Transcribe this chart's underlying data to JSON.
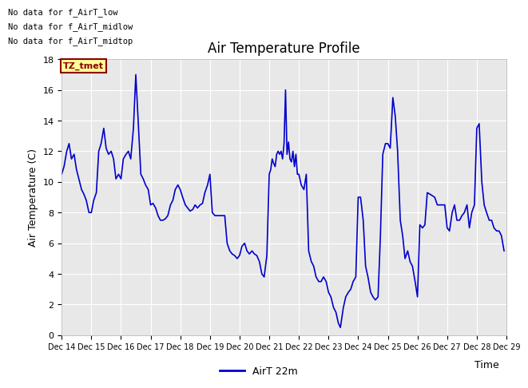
{
  "title": "Air Temperature Profile",
  "xlabel": "Time",
  "ylabel": "Air Temperature (C)",
  "ylim": [
    0,
    18
  ],
  "yticks": [
    0,
    2,
    4,
    6,
    8,
    10,
    12,
    14,
    16,
    18
  ],
  "line_color": "#0000cc",
  "line_width": 1.2,
  "background_color": "#ffffff",
  "plot_bg_color": "#e8e8e8",
  "grid_color": "#ffffff",
  "annotations": [
    "No data for f_AirT_low",
    "No data for f_AirT_midlow",
    "No data for f_AirT_midtop"
  ],
  "tz_label": "TZ_tmet",
  "legend_label": "AirT 22m",
  "xtick_labels": [
    "Dec 14",
    "Dec 15",
    "Dec 16",
    "Dec 17",
    "Dec 18",
    "Dec 19",
    "Dec 20",
    "Dec 21",
    "Dec 22",
    "Dec 23",
    "Dec 24",
    "Dec 25",
    "Dec 26",
    "Dec 27",
    "Dec 28",
    "Dec 29"
  ],
  "time_values": [
    14,
    15,
    16,
    17,
    18,
    19,
    20,
    21,
    22,
    23,
    24,
    25,
    26,
    27,
    28,
    29
  ],
  "temperature_data": [
    [
      14.0,
      10.5
    ],
    [
      14.08,
      11.0
    ],
    [
      14.17,
      12.0
    ],
    [
      14.25,
      12.5
    ],
    [
      14.33,
      11.5
    ],
    [
      14.42,
      11.8
    ],
    [
      14.5,
      10.8
    ],
    [
      14.58,
      10.2
    ],
    [
      14.67,
      9.5
    ],
    [
      14.75,
      9.2
    ],
    [
      14.83,
      8.8
    ],
    [
      14.92,
      8.0
    ],
    [
      15.0,
      8.0
    ],
    [
      15.08,
      8.8
    ],
    [
      15.17,
      9.3
    ],
    [
      15.25,
      12.0
    ],
    [
      15.33,
      12.5
    ],
    [
      15.42,
      13.5
    ],
    [
      15.5,
      12.2
    ],
    [
      15.58,
      11.8
    ],
    [
      15.67,
      12.0
    ],
    [
      15.75,
      11.5
    ],
    [
      15.83,
      10.2
    ],
    [
      15.92,
      10.5
    ],
    [
      16.0,
      10.2
    ],
    [
      16.08,
      11.5
    ],
    [
      16.17,
      11.8
    ],
    [
      16.25,
      12.0
    ],
    [
      16.33,
      11.5
    ],
    [
      16.42,
      13.5
    ],
    [
      16.5,
      17.0
    ],
    [
      16.58,
      14.0
    ],
    [
      16.67,
      10.5
    ],
    [
      16.75,
      10.2
    ],
    [
      16.83,
      9.8
    ],
    [
      16.92,
      9.5
    ],
    [
      17.0,
      8.5
    ],
    [
      17.08,
      8.6
    ],
    [
      17.17,
      8.3
    ],
    [
      17.25,
      7.8
    ],
    [
      17.33,
      7.5
    ],
    [
      17.42,
      7.5
    ],
    [
      17.5,
      7.6
    ],
    [
      17.58,
      7.8
    ],
    [
      17.67,
      8.5
    ],
    [
      17.75,
      8.8
    ],
    [
      17.83,
      9.5
    ],
    [
      17.92,
      9.8
    ],
    [
      18.0,
      9.5
    ],
    [
      18.08,
      9.0
    ],
    [
      18.17,
      8.5
    ],
    [
      18.25,
      8.3
    ],
    [
      18.33,
      8.1
    ],
    [
      18.42,
      8.2
    ],
    [
      18.5,
      8.5
    ],
    [
      18.58,
      8.3
    ],
    [
      18.67,
      8.5
    ],
    [
      18.75,
      8.6
    ],
    [
      18.83,
      9.3
    ],
    [
      18.92,
      9.8
    ],
    [
      19.0,
      10.5
    ],
    [
      19.08,
      8.0
    ],
    [
      19.17,
      7.8
    ],
    [
      19.25,
      7.8
    ],
    [
      19.33,
      7.8
    ],
    [
      19.42,
      7.8
    ],
    [
      19.5,
      7.8
    ],
    [
      19.58,
      6.0
    ],
    [
      19.67,
      5.5
    ],
    [
      19.75,
      5.3
    ],
    [
      19.83,
      5.2
    ],
    [
      19.92,
      5.0
    ],
    [
      20.0,
      5.2
    ],
    [
      20.08,
      5.8
    ],
    [
      20.17,
      6.0
    ],
    [
      20.25,
      5.5
    ],
    [
      20.33,
      5.3
    ],
    [
      20.42,
      5.5
    ],
    [
      20.5,
      5.3
    ],
    [
      20.58,
      5.2
    ],
    [
      20.67,
      4.8
    ],
    [
      20.75,
      4.0
    ],
    [
      20.83,
      3.8
    ],
    [
      20.92,
      5.2
    ],
    [
      21.0,
      10.5
    ],
    [
      21.05,
      10.8
    ],
    [
      21.1,
      11.5
    ],
    [
      21.15,
      11.2
    ],
    [
      21.2,
      11.0
    ],
    [
      21.25,
      11.8
    ],
    [
      21.3,
      12.0
    ],
    [
      21.35,
      11.8
    ],
    [
      21.4,
      12.0
    ],
    [
      21.45,
      11.5
    ],
    [
      21.5,
      12.5
    ],
    [
      21.55,
      16.0
    ],
    [
      21.6,
      11.8
    ],
    [
      21.65,
      12.6
    ],
    [
      21.7,
      11.5
    ],
    [
      21.75,
      11.3
    ],
    [
      21.8,
      12.0
    ],
    [
      21.85,
      11.0
    ],
    [
      21.9,
      11.8
    ],
    [
      21.95,
      10.5
    ],
    [
      22.0,
      10.5
    ],
    [
      22.08,
      9.8
    ],
    [
      22.17,
      9.5
    ],
    [
      22.25,
      10.5
    ],
    [
      22.33,
      5.5
    ],
    [
      22.42,
      4.8
    ],
    [
      22.5,
      4.5
    ],
    [
      22.58,
      3.8
    ],
    [
      22.67,
      3.5
    ],
    [
      22.75,
      3.5
    ],
    [
      22.83,
      3.8
    ],
    [
      22.92,
      3.5
    ],
    [
      23.0,
      2.8
    ],
    [
      23.08,
      2.5
    ],
    [
      23.17,
      1.8
    ],
    [
      23.25,
      1.5
    ],
    [
      23.33,
      0.8
    ],
    [
      23.4,
      0.5
    ],
    [
      23.5,
      1.8
    ],
    [
      23.58,
      2.5
    ],
    [
      23.67,
      2.8
    ],
    [
      23.75,
      3.0
    ],
    [
      23.83,
      3.5
    ],
    [
      23.92,
      3.8
    ],
    [
      24.0,
      9.0
    ],
    [
      24.08,
      9.0
    ],
    [
      24.17,
      7.5
    ],
    [
      24.25,
      4.5
    ],
    [
      24.33,
      3.8
    ],
    [
      24.42,
      2.8
    ],
    [
      24.5,
      2.5
    ],
    [
      24.58,
      2.3
    ],
    [
      24.67,
      2.5
    ],
    [
      24.75,
      6.5
    ],
    [
      24.83,
      11.8
    ],
    [
      24.92,
      12.5
    ],
    [
      25.0,
      12.5
    ],
    [
      25.08,
      12.2
    ],
    [
      25.17,
      15.5
    ],
    [
      25.25,
      14.3
    ],
    [
      25.33,
      12.0
    ],
    [
      25.42,
      7.5
    ],
    [
      25.5,
      6.5
    ],
    [
      25.58,
      5.0
    ],
    [
      25.67,
      5.5
    ],
    [
      25.75,
      4.8
    ],
    [
      25.83,
      4.5
    ],
    [
      25.92,
      3.5
    ],
    [
      26.0,
      2.5
    ],
    [
      26.08,
      7.2
    ],
    [
      26.17,
      7.0
    ],
    [
      26.25,
      7.2
    ],
    [
      26.33,
      9.3
    ],
    [
      26.42,
      9.2
    ],
    [
      26.5,
      9.1
    ],
    [
      26.58,
      9.0
    ],
    [
      26.67,
      8.5
    ],
    [
      26.75,
      8.5
    ],
    [
      26.83,
      8.5
    ],
    [
      26.92,
      8.5
    ],
    [
      27.0,
      7.0
    ],
    [
      27.08,
      6.8
    ],
    [
      27.17,
      8.0
    ],
    [
      27.25,
      8.5
    ],
    [
      27.33,
      7.5
    ],
    [
      27.42,
      7.5
    ],
    [
      27.5,
      7.8
    ],
    [
      27.58,
      8.0
    ],
    [
      27.67,
      8.5
    ],
    [
      27.75,
      7.0
    ],
    [
      27.83,
      8.0
    ],
    [
      27.92,
      8.5
    ],
    [
      28.0,
      13.5
    ],
    [
      28.08,
      13.8
    ],
    [
      28.17,
      10.0
    ],
    [
      28.25,
      8.5
    ],
    [
      28.33,
      8.0
    ],
    [
      28.42,
      7.5
    ],
    [
      28.5,
      7.5
    ],
    [
      28.58,
      7.0
    ],
    [
      28.67,
      6.8
    ],
    [
      28.75,
      6.8
    ],
    [
      28.83,
      6.5
    ],
    [
      28.92,
      5.5
    ]
  ]
}
